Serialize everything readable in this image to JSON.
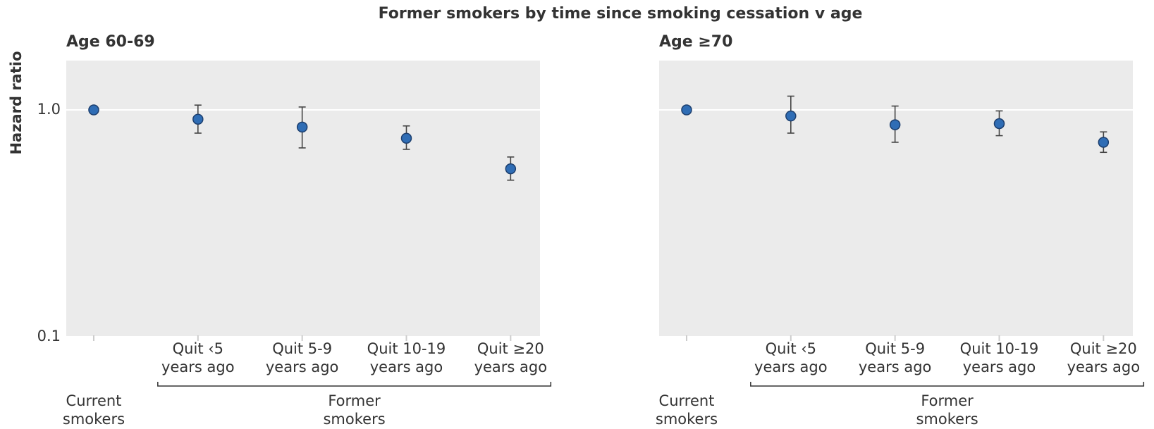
{
  "title": "Former smokers by time since smoking cessation v age",
  "chart_data": [
    {
      "type": "errorbar",
      "title": "Age 60-69",
      "ylabel": "Hazard ratio",
      "log_y": true,
      "grid": true,
      "background": "#ebebeb",
      "categories": [
        "Current smokers",
        "Quit ‹5 years ago",
        "Quit 5-9 years ago",
        "Quit 10-19 years ago",
        "Quit ≥20 years ago"
      ],
      "group_label": "Former smokers",
      "ylim": [
        0.1,
        1.65
      ],
      "yticks": [
        0.1,
        {
          "value": 1,
          "label": "1.0"
        }
      ],
      "series": [
        {
          "color": "#2f6db5",
          "values": [
            1,
            0.91,
            0.84,
            0.75,
            0.55
          ],
          "lower": [
            null,
            0.79,
            0.68,
            0.67,
            0.49
          ],
          "upper": [
            null,
            1.05,
            1.03,
            0.85,
            0.62
          ]
        }
      ]
    },
    {
      "type": "errorbar",
      "title": "Age ≥70",
      "log_y": true,
      "grid": true,
      "sharey": true,
      "background": "#ebebeb",
      "categories": [
        "Current smokers",
        "Quit ‹5 years ago",
        "Quit 5-9 years ago",
        "Quit 10-19 years ago",
        "Quit ≥20 years ago"
      ],
      "group_label": "Former smokers",
      "series": [
        {
          "color": "#2f6db5",
          "values": [
            1,
            0.94,
            0.86,
            0.87,
            0.72
          ],
          "lower": [
            null,
            0.79,
            0.72,
            0.77,
            0.65
          ],
          "upper": [
            null,
            1.15,
            1.04,
            0.99,
            0.8
          ]
        }
      ]
    }
  ]
}
